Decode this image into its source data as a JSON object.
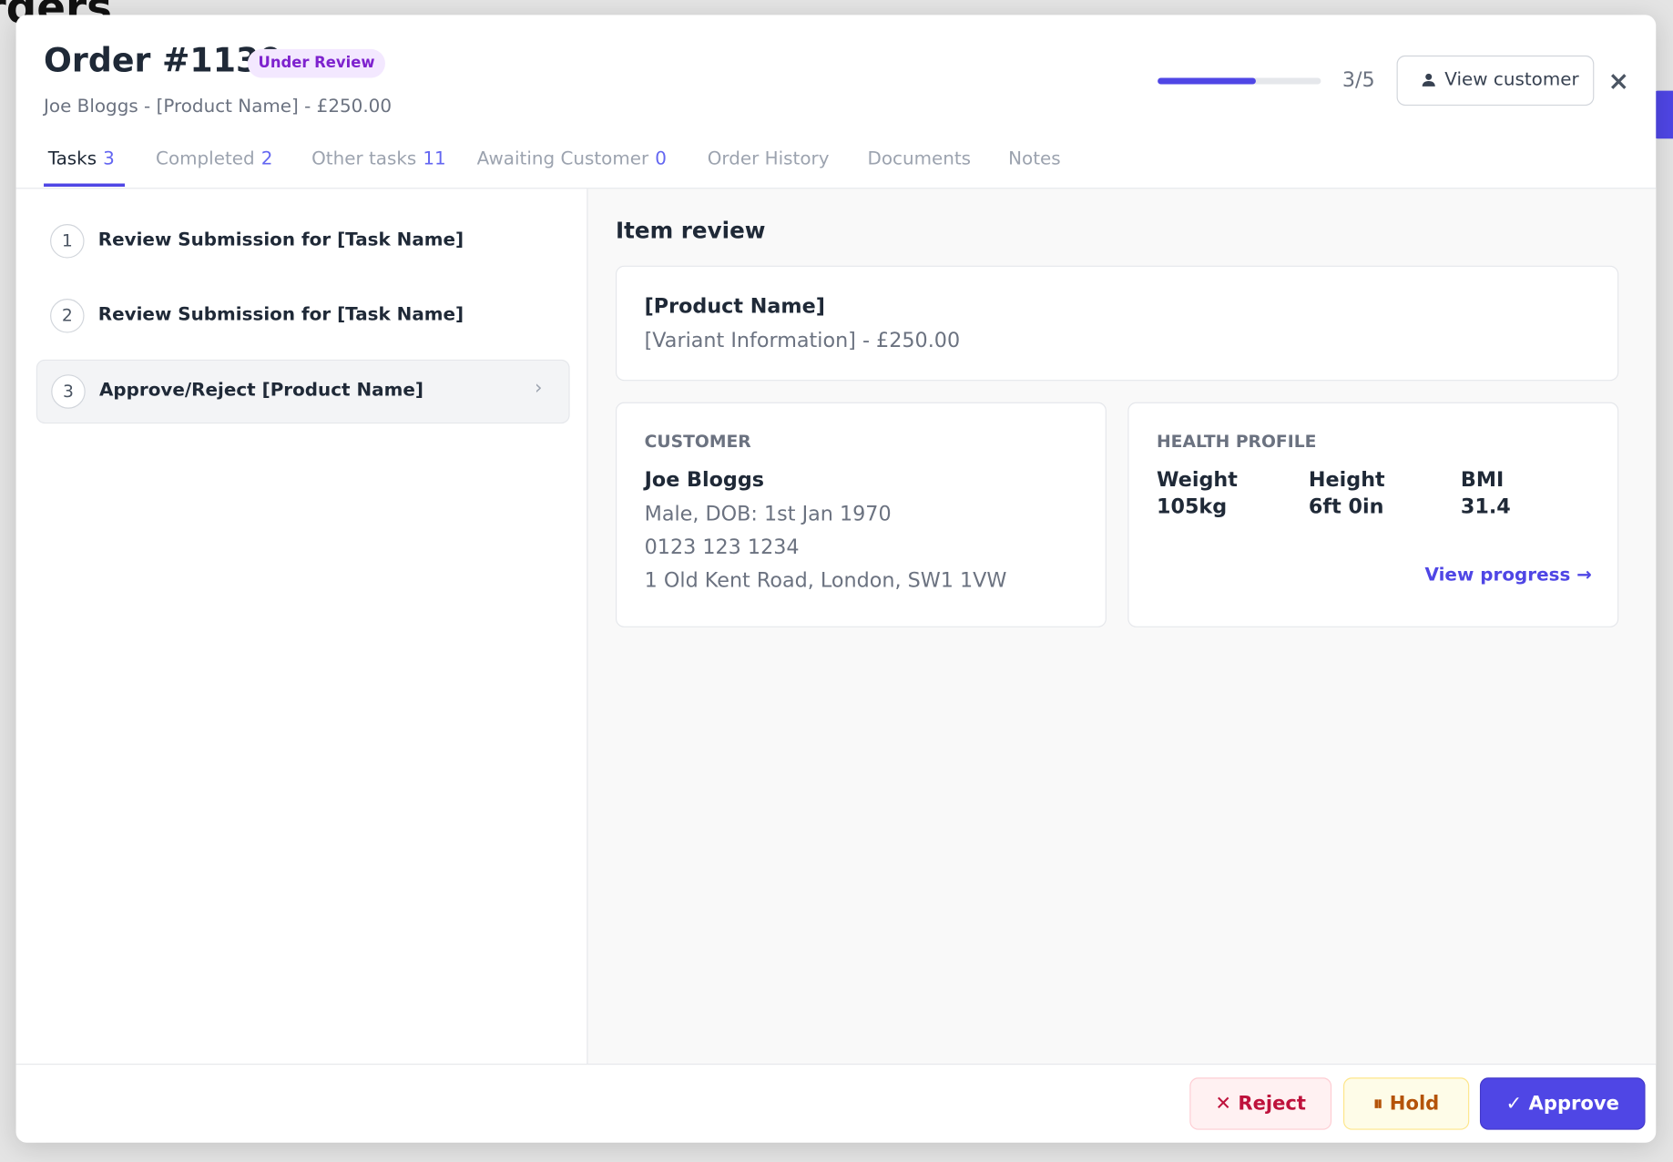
{
  "background": {
    "title": "Orders"
  },
  "header": {
    "title": "Order #1130",
    "status": "Under Review",
    "subtitle": "Joe Bloggs - [Product Name] - £250.00",
    "progress": {
      "current": 3,
      "total": 5,
      "label": "3/5"
    },
    "view_customer": "View customer",
    "close": "×"
  },
  "tabs": [
    {
      "label": "Tasks",
      "count": "3"
    },
    {
      "label": "Completed",
      "count": "2"
    },
    {
      "label": "Other tasks",
      "count": "11"
    },
    {
      "label": "Awaiting Customer",
      "count": "0"
    },
    {
      "label": "Order History"
    },
    {
      "label": "Documents"
    },
    {
      "label": "Notes"
    }
  ],
  "tasks": [
    {
      "number": "1",
      "label": "Review Submission for [Task Name]"
    },
    {
      "number": "2",
      "label": "Review Submission for [Task Name]"
    },
    {
      "number": "3",
      "label": "Approve/Reject [Product Name]"
    }
  ],
  "review": {
    "title": "Item review",
    "product": {
      "name": "[Product Name]",
      "detail": "[Variant Information] - £250.00"
    },
    "customer": {
      "heading": "CUSTOMER",
      "name": "Joe Bloggs",
      "lines": [
        "Male, DOB: 1st Jan 1970",
        "0123 123 1234",
        "1 Old Kent Road, London, SW1 1VW"
      ]
    },
    "health": {
      "heading": "HEALTH PROFILE",
      "metrics": [
        {
          "label": "Weight",
          "value": "105kg"
        },
        {
          "label": "Height",
          "value": "6ft 0in"
        },
        {
          "label": "BMI",
          "value": "31.4"
        }
      ],
      "link": "View progress →"
    }
  },
  "actions": {
    "reject": "✕  Reject",
    "hold": "⏸ Hold",
    "approve": "✓  Approve"
  }
}
